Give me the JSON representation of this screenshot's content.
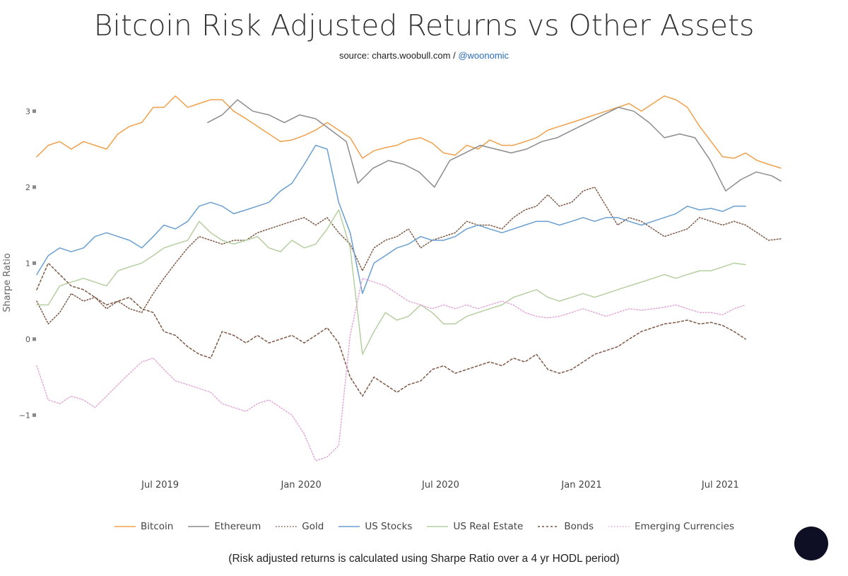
{
  "title": "Bitcoin Risk Adjusted Returns vs Other Assets",
  "source": {
    "prefix": "source: charts.woobull.com / ",
    "handle": "@woonomic"
  },
  "footnote": "(Risk adjusted returns is calculated using Sharpe Ratio over a 4 yr HODL period)",
  "help_bubble": {
    "color": "#0e0f24"
  },
  "chart_data": {
    "type": "line",
    "ylabel": "Sharpe Ratio",
    "xlabel": "",
    "xlim": [
      "2019-01-21",
      "2021-09-18"
    ],
    "ylim": [
      -1.75,
      3.3
    ],
    "yticks": [
      "3",
      "2",
      "1",
      "0",
      "−1"
    ],
    "ytick_values": [
      3,
      2,
      1,
      0,
      -1
    ],
    "xticks": [
      "Jul 2019",
      "Jan 2020",
      "Jul 2020",
      "Jan 2021",
      "Jul 2021"
    ],
    "xtick_values": [
      "2019-07-01",
      "2020-01-01",
      "2020-07-01",
      "2021-01-01",
      "2021-07-01"
    ],
    "grid": false,
    "legend_position": "bottom",
    "series": [
      {
        "name": "Bitcoin",
        "color": "#f0a04b",
        "dash": "solid",
        "x": [
          "2019-01-21",
          "2019-02-05",
          "2019-02-20",
          "2019-03-07",
          "2019-03-23",
          "2019-04-07",
          "2019-04-22",
          "2019-05-07",
          "2019-05-22",
          "2019-06-07",
          "2019-06-22",
          "2019-07-06",
          "2019-07-21",
          "2019-08-06",
          "2019-08-21",
          "2019-09-05",
          "2019-09-20",
          "2019-10-05",
          "2019-10-21",
          "2019-11-05",
          "2019-11-20",
          "2019-12-05",
          "2019-12-20",
          "2020-01-05",
          "2020-01-20",
          "2020-02-04",
          "2020-02-19",
          "2020-03-05",
          "2020-03-21",
          "2020-04-05",
          "2020-04-20",
          "2020-05-05",
          "2020-05-20",
          "2020-06-05",
          "2020-06-20",
          "2020-07-05",
          "2020-07-20",
          "2020-08-04",
          "2020-08-19",
          "2020-09-03",
          "2020-09-19",
          "2020-10-04",
          "2020-10-19",
          "2020-11-03",
          "2020-11-18",
          "2020-12-03",
          "2020-12-19",
          "2021-01-03",
          "2021-01-18",
          "2021-02-02",
          "2021-02-17",
          "2021-03-04",
          "2021-03-20",
          "2021-04-04",
          "2021-04-19",
          "2021-05-04",
          "2021-05-19",
          "2021-06-04",
          "2021-06-19",
          "2021-07-04",
          "2021-07-19",
          "2021-08-03",
          "2021-08-18",
          "2021-09-02",
          "2021-09-18"
        ],
        "y": [
          2.4,
          2.55,
          2.6,
          2.5,
          2.6,
          2.55,
          2.5,
          2.7,
          2.8,
          2.85,
          3.05,
          3.05,
          3.2,
          3.05,
          3.1,
          3.15,
          3.15,
          3.0,
          2.9,
          2.8,
          2.7,
          2.6,
          2.62,
          2.68,
          2.75,
          2.85,
          2.75,
          2.65,
          2.38,
          2.48,
          2.52,
          2.55,
          2.62,
          2.65,
          2.58,
          2.45,
          2.42,
          2.55,
          2.5,
          2.62,
          2.55,
          2.55,
          2.6,
          2.65,
          2.75,
          2.8,
          2.85,
          2.9,
          2.95,
          3.0,
          3.05,
          3.1,
          3.0,
          3.1,
          3.2,
          3.15,
          3.05,
          2.8,
          2.6,
          2.4,
          2.38,
          2.45,
          2.35,
          2.3,
          2.25
        ]
      },
      {
        "name": "Ethereum",
        "color": "#8c8c8c",
        "dash": "solid",
        "x": [
          "2019-09-01",
          "2019-09-20",
          "2019-10-10",
          "2019-10-30",
          "2019-11-20",
          "2019-12-10",
          "2019-12-30",
          "2020-01-20",
          "2020-02-09",
          "2020-02-29",
          "2020-03-15",
          "2020-04-04",
          "2020-04-24",
          "2020-05-14",
          "2020-06-03",
          "2020-06-23",
          "2020-07-13",
          "2020-08-02",
          "2020-08-22",
          "2020-09-11",
          "2020-10-01",
          "2020-10-21",
          "2020-11-10",
          "2020-11-30",
          "2020-12-20",
          "2021-01-09",
          "2021-01-29",
          "2021-02-18",
          "2021-03-10",
          "2021-03-30",
          "2021-04-19",
          "2021-05-09",
          "2021-05-29",
          "2021-06-18",
          "2021-07-08",
          "2021-07-28",
          "2021-08-17",
          "2021-09-06",
          "2021-09-18"
        ],
        "y": [
          2.85,
          2.95,
          3.15,
          3.0,
          2.95,
          2.85,
          2.95,
          2.9,
          2.75,
          2.6,
          2.05,
          2.25,
          2.35,
          2.3,
          2.2,
          2.0,
          2.35,
          2.45,
          2.55,
          2.5,
          2.45,
          2.5,
          2.6,
          2.65,
          2.75,
          2.85,
          2.95,
          3.05,
          3.0,
          2.85,
          2.65,
          2.7,
          2.65,
          2.35,
          1.95,
          2.1,
          2.2,
          2.15,
          2.08
        ]
      },
      {
        "name": "Gold",
        "color": "#7d5743",
        "dash": "dot",
        "x": [
          "2019-01-21",
          "2019-02-05",
          "2019-02-20",
          "2019-03-07",
          "2019-03-23",
          "2019-04-07",
          "2019-04-22",
          "2019-05-07",
          "2019-05-22",
          "2019-06-07",
          "2019-06-22",
          "2019-07-06",
          "2019-07-21",
          "2019-08-06",
          "2019-08-21",
          "2019-09-05",
          "2019-09-20",
          "2019-10-05",
          "2019-10-21",
          "2019-11-05",
          "2019-11-20",
          "2019-12-05",
          "2019-12-20",
          "2020-01-05",
          "2020-01-20",
          "2020-02-04",
          "2020-02-19",
          "2020-03-05",
          "2020-03-21",
          "2020-04-05",
          "2020-04-20",
          "2020-05-05",
          "2020-05-20",
          "2020-06-05",
          "2020-06-20",
          "2020-07-05",
          "2020-07-20",
          "2020-08-04",
          "2020-08-19",
          "2020-09-03",
          "2020-09-19",
          "2020-10-04",
          "2020-10-19",
          "2020-11-03",
          "2020-11-18",
          "2020-12-03",
          "2020-12-19",
          "2021-01-03",
          "2021-01-18",
          "2021-02-02",
          "2021-02-17",
          "2021-03-04",
          "2021-03-20",
          "2021-04-04",
          "2021-04-19",
          "2021-05-04",
          "2021-05-19",
          "2021-06-04",
          "2021-06-19",
          "2021-07-04",
          "2021-07-19",
          "2021-08-03",
          "2021-08-18",
          "2021-09-02",
          "2021-09-18"
        ],
        "y": [
          0.5,
          0.2,
          0.35,
          0.6,
          0.5,
          0.55,
          0.4,
          0.5,
          0.4,
          0.35,
          0.6,
          0.8,
          1.0,
          1.2,
          1.35,
          1.3,
          1.25,
          1.3,
          1.3,
          1.4,
          1.45,
          1.5,
          1.55,
          1.6,
          1.5,
          1.6,
          1.4,
          1.25,
          0.9,
          1.2,
          1.3,
          1.35,
          1.45,
          1.2,
          1.3,
          1.35,
          1.4,
          1.55,
          1.5,
          1.5,
          1.45,
          1.6,
          1.7,
          1.75,
          1.9,
          1.75,
          1.8,
          1.95,
          2.0,
          1.75,
          1.5,
          1.6,
          1.55,
          1.45,
          1.35,
          1.4,
          1.45,
          1.6,
          1.55,
          1.5,
          1.55,
          1.5,
          1.4,
          1.3,
          1.32
        ]
      },
      {
        "name": "US Stocks",
        "color": "#6a9fd0",
        "dash": "solid",
        "x": [
          "2019-01-21",
          "2019-02-05",
          "2019-02-20",
          "2019-03-07",
          "2019-03-23",
          "2019-04-07",
          "2019-04-22",
          "2019-05-07",
          "2019-05-22",
          "2019-06-07",
          "2019-06-22",
          "2019-07-06",
          "2019-07-21",
          "2019-08-06",
          "2019-08-21",
          "2019-09-05",
          "2019-09-20",
          "2019-10-05",
          "2019-10-21",
          "2019-11-05",
          "2019-11-20",
          "2019-12-05",
          "2019-12-20",
          "2020-01-05",
          "2020-01-20",
          "2020-02-04",
          "2020-02-19",
          "2020-03-05",
          "2020-03-21",
          "2020-04-05",
          "2020-04-20",
          "2020-05-05",
          "2020-05-20",
          "2020-06-05",
          "2020-06-20",
          "2020-07-05",
          "2020-07-20",
          "2020-08-04",
          "2020-08-19",
          "2020-09-03",
          "2020-09-19",
          "2020-10-04",
          "2020-10-19",
          "2020-11-03",
          "2020-11-18",
          "2020-12-03",
          "2020-12-19",
          "2021-01-03",
          "2021-01-18",
          "2021-02-02",
          "2021-02-17",
          "2021-03-04",
          "2021-03-20",
          "2021-04-04",
          "2021-04-19",
          "2021-05-04",
          "2021-05-19",
          "2021-06-04",
          "2021-06-19",
          "2021-07-04",
          "2021-07-19",
          "2021-08-03"
        ],
        "y": [
          0.85,
          1.1,
          1.2,
          1.15,
          1.2,
          1.35,
          1.4,
          1.35,
          1.3,
          1.2,
          1.35,
          1.5,
          1.45,
          1.55,
          1.75,
          1.8,
          1.75,
          1.65,
          1.7,
          1.75,
          1.8,
          1.95,
          2.05,
          2.3,
          2.55,
          2.5,
          1.8,
          1.4,
          0.6,
          1.0,
          1.1,
          1.2,
          1.25,
          1.35,
          1.3,
          1.3,
          1.35,
          1.45,
          1.5,
          1.45,
          1.4,
          1.45,
          1.5,
          1.55,
          1.55,
          1.5,
          1.55,
          1.6,
          1.55,
          1.6,
          1.6,
          1.55,
          1.5,
          1.55,
          1.6,
          1.65,
          1.75,
          1.7,
          1.72,
          1.68,
          1.75,
          1.75
        ]
      },
      {
        "name": "US Real Estate",
        "color": "#b5cfa0",
        "dash": "solid",
        "x": [
          "2019-01-21",
          "2019-02-05",
          "2019-02-20",
          "2019-03-07",
          "2019-03-23",
          "2019-04-07",
          "2019-04-22",
          "2019-05-07",
          "2019-05-22",
          "2019-06-07",
          "2019-06-22",
          "2019-07-06",
          "2019-07-21",
          "2019-08-06",
          "2019-08-21",
          "2019-09-05",
          "2019-09-20",
          "2019-10-05",
          "2019-10-21",
          "2019-11-05",
          "2019-11-20",
          "2019-12-05",
          "2019-12-20",
          "2020-01-05",
          "2020-01-20",
          "2020-02-04",
          "2020-02-19",
          "2020-03-05",
          "2020-03-21",
          "2020-04-05",
          "2020-04-20",
          "2020-05-05",
          "2020-05-20",
          "2020-06-05",
          "2020-06-20",
          "2020-07-05",
          "2020-07-20",
          "2020-08-04",
          "2020-08-19",
          "2020-09-03",
          "2020-09-19",
          "2020-10-04",
          "2020-10-19",
          "2020-11-03",
          "2020-11-18",
          "2020-12-03",
          "2020-12-19",
          "2021-01-03",
          "2021-01-18",
          "2021-02-02",
          "2021-02-17",
          "2021-03-04",
          "2021-03-20",
          "2021-04-04",
          "2021-04-19",
          "2021-05-04",
          "2021-05-19",
          "2021-06-04",
          "2021-06-19",
          "2021-07-04",
          "2021-07-19",
          "2021-08-03"
        ],
        "y": [
          0.45,
          0.45,
          0.7,
          0.75,
          0.8,
          0.75,
          0.7,
          0.9,
          0.95,
          1.0,
          1.1,
          1.2,
          1.25,
          1.3,
          1.55,
          1.4,
          1.3,
          1.25,
          1.3,
          1.35,
          1.2,
          1.15,
          1.3,
          1.2,
          1.25,
          1.45,
          1.7,
          1.2,
          -0.2,
          0.1,
          0.35,
          0.25,
          0.3,
          0.45,
          0.35,
          0.2,
          0.2,
          0.3,
          0.35,
          0.4,
          0.45,
          0.55,
          0.6,
          0.65,
          0.55,
          0.5,
          0.55,
          0.6,
          0.55,
          0.6,
          0.65,
          0.7,
          0.75,
          0.8,
          0.85,
          0.8,
          0.85,
          0.9,
          0.9,
          0.95,
          1.0,
          0.98
        ]
      },
      {
        "name": "Bonds",
        "color": "#7d5743",
        "dash": "dash",
        "x": [
          "2019-01-21",
          "2019-02-05",
          "2019-02-20",
          "2019-03-07",
          "2019-03-23",
          "2019-04-07",
          "2019-04-22",
          "2019-05-07",
          "2019-05-22",
          "2019-06-07",
          "2019-06-22",
          "2019-07-06",
          "2019-07-21",
          "2019-08-06",
          "2019-08-21",
          "2019-09-05",
          "2019-09-20",
          "2019-10-05",
          "2019-10-21",
          "2019-11-05",
          "2019-11-20",
          "2019-12-05",
          "2019-12-20",
          "2020-01-05",
          "2020-01-20",
          "2020-02-04",
          "2020-02-19",
          "2020-03-05",
          "2020-03-21",
          "2020-04-05",
          "2020-04-20",
          "2020-05-05",
          "2020-05-20",
          "2020-06-05",
          "2020-06-20",
          "2020-07-05",
          "2020-07-20",
          "2020-08-04",
          "2020-08-19",
          "2020-09-03",
          "2020-09-19",
          "2020-10-04",
          "2020-10-19",
          "2020-11-03",
          "2020-11-18",
          "2020-12-03",
          "2020-12-19",
          "2021-01-03",
          "2021-01-18",
          "2021-02-02",
          "2021-02-17",
          "2021-03-04",
          "2021-03-20",
          "2021-04-04",
          "2021-04-19",
          "2021-05-04",
          "2021-05-19",
          "2021-06-04",
          "2021-06-19",
          "2021-07-04",
          "2021-07-19",
          "2021-08-03"
        ],
        "y": [
          0.65,
          1.0,
          0.85,
          0.7,
          0.65,
          0.55,
          0.45,
          0.5,
          0.55,
          0.4,
          0.35,
          0.1,
          0.05,
          -0.1,
          -0.2,
          -0.25,
          0.1,
          0.05,
          -0.05,
          0.05,
          -0.05,
          0.0,
          0.05,
          -0.05,
          0.05,
          0.15,
          -0.05,
          -0.5,
          -0.75,
          -0.5,
          -0.6,
          -0.7,
          -0.6,
          -0.55,
          -0.4,
          -0.35,
          -0.45,
          -0.4,
          -0.35,
          -0.3,
          -0.35,
          -0.25,
          -0.3,
          -0.2,
          -0.4,
          -0.45,
          -0.4,
          -0.3,
          -0.2,
          -0.15,
          -0.1,
          0.0,
          0.1,
          0.15,
          0.2,
          0.22,
          0.25,
          0.2,
          0.22,
          0.18,
          0.1,
          0.0
        ]
      },
      {
        "name": "Emerging Currencies",
        "color": "#e4a7d8",
        "dash": "dot",
        "x": [
          "2019-01-21",
          "2019-02-05",
          "2019-02-20",
          "2019-03-07",
          "2019-03-23",
          "2019-04-07",
          "2019-04-22",
          "2019-05-07",
          "2019-05-22",
          "2019-06-07",
          "2019-06-22",
          "2019-07-06",
          "2019-07-21",
          "2019-08-06",
          "2019-08-21",
          "2019-09-05",
          "2019-09-20",
          "2019-10-05",
          "2019-10-21",
          "2019-11-05",
          "2019-11-20",
          "2019-12-05",
          "2019-12-20",
          "2020-01-05",
          "2020-01-20",
          "2020-02-04",
          "2020-02-19",
          "2020-03-05",
          "2020-03-21",
          "2020-04-05",
          "2020-04-20",
          "2020-05-05",
          "2020-05-20",
          "2020-06-05",
          "2020-06-20",
          "2020-07-05",
          "2020-07-20",
          "2020-08-04",
          "2020-08-19",
          "2020-09-03",
          "2020-09-19",
          "2020-10-04",
          "2020-10-19",
          "2020-11-03",
          "2020-11-18",
          "2020-12-03",
          "2020-12-19",
          "2021-01-03",
          "2021-01-18",
          "2021-02-02",
          "2021-02-17",
          "2021-03-04",
          "2021-03-20",
          "2021-04-04",
          "2021-04-19",
          "2021-05-04",
          "2021-05-19",
          "2021-06-04",
          "2021-06-19",
          "2021-07-04",
          "2021-07-19",
          "2021-08-03"
        ],
        "y": [
          -0.35,
          -0.8,
          -0.85,
          -0.75,
          -0.8,
          -0.9,
          -0.75,
          -0.6,
          -0.45,
          -0.3,
          -0.25,
          -0.4,
          -0.55,
          -0.6,
          -0.65,
          -0.7,
          -0.85,
          -0.9,
          -0.95,
          -0.85,
          -0.8,
          -0.9,
          -1.0,
          -1.25,
          -1.6,
          -1.55,
          -1.4,
          0.05,
          0.8,
          0.75,
          0.7,
          0.6,
          0.5,
          0.45,
          0.4,
          0.45,
          0.4,
          0.45,
          0.4,
          0.45,
          0.5,
          0.45,
          0.35,
          0.3,
          0.28,
          0.3,
          0.35,
          0.4,
          0.35,
          0.3,
          0.35,
          0.4,
          0.38,
          0.4,
          0.42,
          0.45,
          0.4,
          0.35,
          0.35,
          0.32,
          0.4,
          0.45
        ]
      }
    ]
  }
}
